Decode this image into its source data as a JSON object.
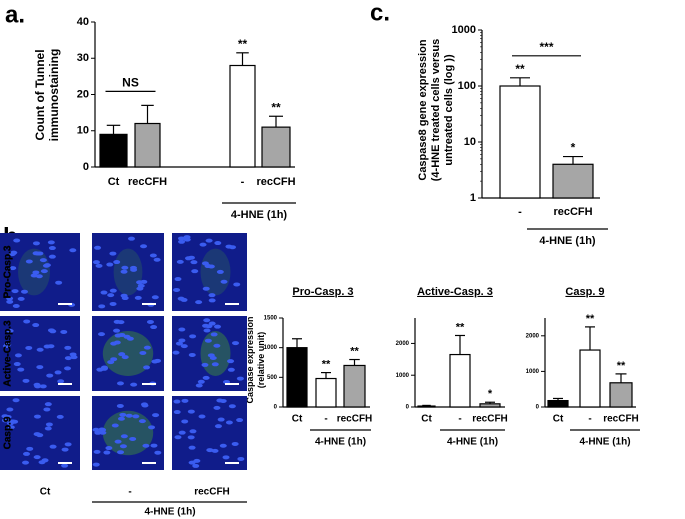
{
  "chart_data": [
    {
      "type": "bar",
      "panel": "a.",
      "ylabel": [
        "Count of Tunnel",
        "immunostaining"
      ],
      "categories": [
        "Ct",
        "recCFH",
        "-",
        "recCFH"
      ],
      "values": [
        9,
        12,
        28,
        11
      ],
      "errors": [
        2.5,
        5,
        3.5,
        3
      ],
      "colors": [
        "#000000",
        "#a6a6a6",
        "#ffffff",
        "#a6a6a6"
      ],
      "significance": [
        null,
        null,
        "**",
        "**"
      ],
      "brackets": [
        {
          "text": "NS",
          "from": 0,
          "to": 1
        }
      ],
      "group": "4-HNE (1h)",
      "ylim": [
        0,
        40
      ],
      "yticks": [
        0,
        10,
        20,
        30,
        40
      ],
      "log_scale": false
    },
    {
      "type": "bar",
      "panel": "c.",
      "ylabel": [
        "Caspase8 gene expression",
        "(4-HNE treated cells versus",
        "untreated cells (log ))"
      ],
      "categories": [
        "-",
        "recCFH"
      ],
      "values": [
        100,
        4
      ],
      "errors": [
        40,
        1.5
      ],
      "colors": [
        "#ffffff",
        "#a6a6a6"
      ],
      "significance": [
        "**",
        "*"
      ],
      "brackets": [
        {
          "text": "***",
          "from": 0,
          "to": 1
        }
      ],
      "group": "4-HNE (1h)",
      "ylim": [
        1,
        1000
      ],
      "yticks": [
        1,
        10,
        100,
        1000
      ],
      "log_scale": true
    },
    {
      "type": "bar",
      "panel": "b.",
      "title": "Pro-Casp. 3",
      "ylabel": [
        "Caspase expression",
        "(relative unit)"
      ],
      "categories": [
        "Ct",
        "-",
        "recCFH"
      ],
      "values": [
        1000,
        480,
        700
      ],
      "errors": [
        150,
        100,
        100
      ],
      "colors": [
        "#000000",
        "#ffffff",
        "#a6a6a6"
      ],
      "significance": [
        null,
        "**",
        "**"
      ],
      "group": "4-HNE (1h)",
      "ylim": [
        0,
        1500
      ],
      "yticks": [
        0,
        500,
        1000,
        1500
      ],
      "log_scale": false
    },
    {
      "type": "bar",
      "title": "Active-Casp. 3",
      "categories": [
        "Ct",
        "-",
        "recCFH"
      ],
      "values": [
        30,
        1650,
        100
      ],
      "errors": [
        20,
        600,
        50
      ],
      "colors": [
        "#000000",
        "#ffffff",
        "#a6a6a6"
      ],
      "significance": [
        null,
        "**",
        "*"
      ],
      "group": "4-HNE (1h)",
      "ylim": [
        0,
        2800
      ],
      "yticks": [
        0,
        1000,
        2000
      ],
      "log_scale": false
    },
    {
      "type": "bar",
      "title": "Casp. 9",
      "categories": [
        "Ct",
        "-",
        "recCFH"
      ],
      "values": [
        180,
        1600,
        680
      ],
      "errors": [
        60,
        650,
        250
      ],
      "colors": [
        "#000000",
        "#ffffff",
        "#a6a6a6"
      ],
      "significance": [
        null,
        "**",
        "**"
      ],
      "group": "4-HNE (1h)",
      "ylim": [
        0,
        2500
      ],
      "yticks": [
        0,
        1000,
        2000
      ],
      "log_scale": false
    }
  ],
  "micrographs": {
    "rows": [
      "Pro-Casp.3",
      "Active-Casp.3",
      "Casp.9"
    ],
    "columns": [
      "Ct",
      "-",
      "recCFH"
    ],
    "group": "4-HNE (1h)"
  }
}
